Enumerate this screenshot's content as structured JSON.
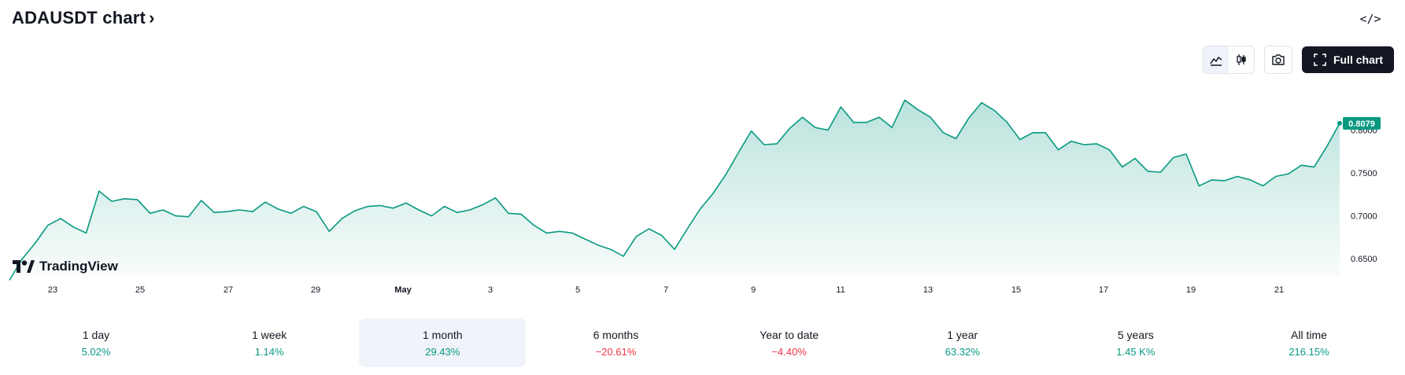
{
  "header": {
    "title": "ADAUSDT chart",
    "chevron": "›"
  },
  "embed": {
    "label": "</>"
  },
  "toolbar": {
    "full_chart_label": "Full chart"
  },
  "logo": {
    "text": "TradingView"
  },
  "chart_data": {
    "type": "area",
    "symbol": "ADAUSDT",
    "x_tick_labels": [
      "23",
      "25",
      "27",
      "29",
      "May",
      "3",
      "5",
      "7",
      "9",
      "11",
      "13",
      "15",
      "17",
      "19",
      "21"
    ],
    "y_tick_labels": [
      "0.6500",
      "0.7000",
      "0.7500",
      "0.8000"
    ],
    "ylim": [
      0.63,
      0.86
    ],
    "last_price": "0.8079",
    "line_color": "#089981",
    "series": [
      {
        "values": [
          0.625,
          0.65,
          0.668,
          0.689,
          0.697,
          0.687,
          0.68,
          0.729,
          0.717,
          0.72,
          0.719,
          0.703,
          0.707,
          0.7,
          0.699,
          0.718,
          0.704,
          0.705,
          0.707,
          0.705,
          0.716,
          0.708,
          0.703,
          0.711,
          0.705,
          0.682,
          0.697,
          0.706,
          0.711,
          0.712,
          0.709,
          0.715,
          0.707,
          0.7,
          0.711,
          0.704,
          0.707,
          0.713,
          0.721,
          0.703,
          0.702,
          0.689,
          0.68,
          0.682,
          0.68,
          0.673,
          0.666,
          0.661,
          0.653,
          0.676,
          0.685,
          0.677,
          0.661,
          0.685,
          0.708,
          0.726,
          0.748,
          0.774,
          0.799,
          0.783,
          0.784,
          0.802,
          0.815,
          0.803,
          0.8,
          0.827,
          0.809,
          0.809,
          0.815,
          0.803,
          0.835,
          0.824,
          0.815,
          0.797,
          0.79,
          0.814,
          0.832,
          0.823,
          0.809,
          0.789,
          0.797,
          0.797,
          0.777,
          0.787,
          0.783,
          0.784,
          0.777,
          0.757,
          0.767,
          0.752,
          0.751,
          0.768,
          0.772,
          0.735,
          0.742,
          0.741,
          0.746,
          0.742,
          0.735,
          0.746,
          0.749,
          0.759,
          0.757,
          0.781,
          0.808
        ]
      }
    ]
  },
  "periods": [
    {
      "label": "1 day",
      "value": "5.02%",
      "sign": "pos"
    },
    {
      "label": "1 week",
      "value": "1.14%",
      "sign": "pos"
    },
    {
      "label": "1 month",
      "value": "29.43%",
      "sign": "pos",
      "active": true
    },
    {
      "label": "6 months",
      "value": "−20.61%",
      "sign": "neg"
    },
    {
      "label": "Year to date",
      "value": "−4.40%",
      "sign": "neg"
    },
    {
      "label": "1 year",
      "value": "63.32%",
      "sign": "pos"
    },
    {
      "label": "5 years",
      "value": "1.45 K%",
      "sign": "pos"
    },
    {
      "label": "All time",
      "value": "216.15%",
      "sign": "pos"
    }
  ]
}
